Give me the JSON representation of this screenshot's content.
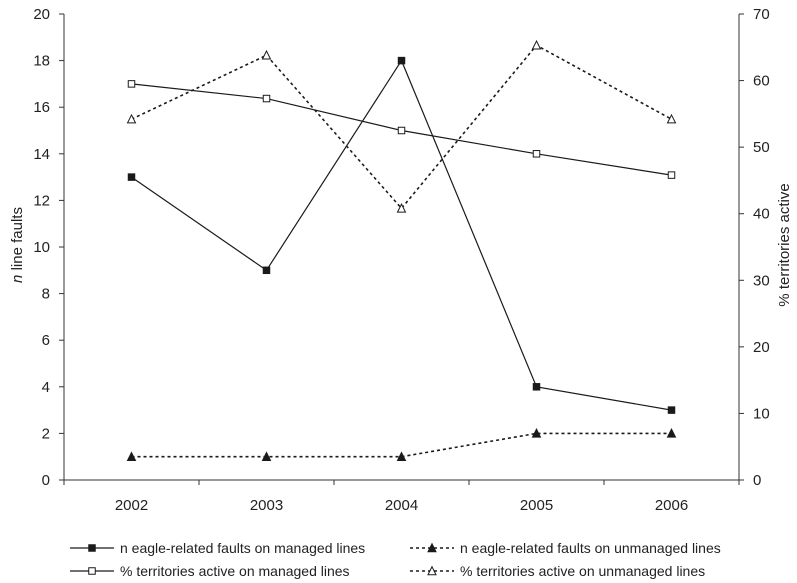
{
  "chart_data": {
    "type": "line",
    "title": "",
    "x": [
      "2002",
      "2003",
      "2004",
      "2005",
      "2006"
    ],
    "y_left": {
      "label_italic": "n",
      "label_rest": " line faults",
      "min": 0,
      "max": 20,
      "step": 2,
      "ticks": [
        "0",
        "2",
        "4",
        "6",
        "8",
        "10",
        "12",
        "14",
        "16",
        "18",
        "20"
      ]
    },
    "y_right": {
      "label": "% territories active",
      "min": 0,
      "max": 70,
      "step": 10,
      "ticks": [
        "0",
        "10",
        "20",
        "30",
        "40",
        "50",
        "60",
        "70"
      ]
    },
    "series": [
      {
        "name": "n eagle-related faults on managed lines",
        "axis": "left",
        "marker": "filled-square",
        "dash": "solid",
        "values": [
          13,
          9,
          18,
          4,
          3
        ]
      },
      {
        "name": "n eagle-related faults on unmanaged lines",
        "axis": "left",
        "marker": "filled-triangle",
        "dash": "dotted",
        "values": [
          1,
          1,
          1,
          2,
          2
        ]
      },
      {
        "name": "% territories active on managed lines",
        "axis": "right",
        "marker": "open-square",
        "dash": "solid",
        "values": [
          59.5,
          57.3,
          52.5,
          49,
          45.8
        ]
      },
      {
        "name": "% territories active on unmanaged lines",
        "axis": "right",
        "marker": "open-triangle",
        "dash": "dotted",
        "values": [
          54.2,
          63.8,
          40.8,
          65.3,
          54.2
        ]
      }
    ],
    "grid": false,
    "legend_position": "bottom",
    "colors": {
      "line": "#1a1a1a",
      "axis": "#333333",
      "text": "#222222"
    }
  }
}
